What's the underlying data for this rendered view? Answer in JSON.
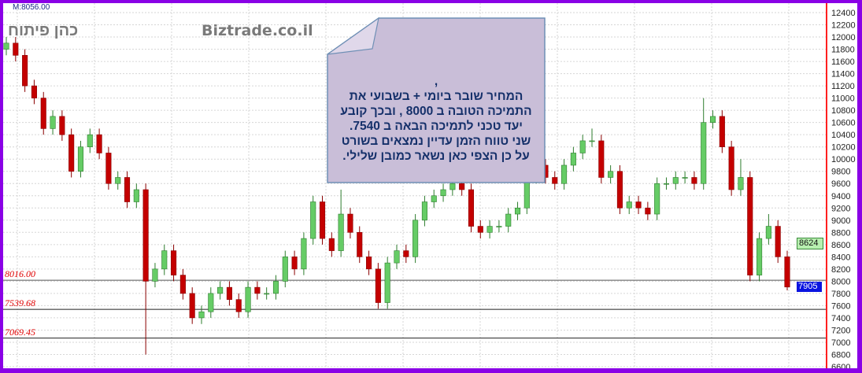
{
  "header": {
    "m_label": "M:8056.00",
    "watermark_left": "כהן פיתוח",
    "watermark_center": "Biztrade.co.il"
  },
  "annotation": {
    "lines": [
      ",",
      "המחיר שובר ביומי + בשבועי את",
      "התמיכה הטובה ב 8000 , ובכך קובע",
      "יעד טכני לתמיכה הבאה ב 7540.",
      "שני טווח הזמן עדיין נמצאים בשורט",
      "על כן הצפי כאן נשאר כמובן שלילי."
    ],
    "background": "#c9bed8",
    "border": "#6f8fb5"
  },
  "chart_data": {
    "type": "candlestick",
    "ylim": [
      6600,
      12400
    ],
    "yticks": [
      6600,
      6800,
      7000,
      7200,
      7400,
      7600,
      7800,
      8000,
      8200,
      8400,
      8600,
      8800,
      9000,
      9200,
      9400,
      9600,
      9800,
      10000,
      10200,
      10400,
      10600,
      10800,
      11000,
      11200,
      11400,
      11600,
      11800,
      12000,
      12200,
      12400
    ],
    "grid": true,
    "up_color": "#66cc66",
    "down_color": "#c40000",
    "open": [
      11800,
      11900,
      11700,
      11200,
      11000,
      10500,
      10700,
      10400,
      9800,
      10200,
      10400,
      10100,
      9600,
      9700,
      9300,
      9500,
      8000,
      8200,
      8500,
      8100,
      7800,
      7400,
      7500,
      7800,
      7900,
      7700,
      7500,
      7900,
      7800,
      7800,
      8000,
      8400,
      8200,
      8700,
      9300,
      8700,
      8500,
      9100,
      8800,
      8400,
      8200,
      7650,
      8300,
      8500,
      8400,
      9000,
      9300,
      9400,
      9500,
      9600,
      9500,
      8900,
      8800,
      8900,
      8900,
      9100,
      9200,
      9700,
      9900,
      9700,
      9600,
      9900,
      10100,
      10300,
      10300,
      9700,
      9800,
      9200,
      9300,
      9200,
      9100,
      9600,
      9600,
      9700,
      9700,
      9600,
      10600,
      10700,
      10200,
      9500,
      9700,
      8100,
      8700,
      8900,
      8400
    ],
    "high": [
      12000,
      12000,
      11800,
      11300,
      11100,
      10800,
      10800,
      10500,
      10300,
      10500,
      10500,
      10200,
      9800,
      9800,
      9600,
      9600,
      8300,
      8600,
      8600,
      8200,
      7900,
      7600,
      7900,
      8000,
      8000,
      7800,
      8000,
      8000,
      7900,
      8100,
      8500,
      8500,
      8800,
      9400,
      9400,
      8800,
      9500,
      9200,
      8900,
      8500,
      8300,
      8400,
      8600,
      8600,
      9100,
      9400,
      9500,
      9600,
      9700,
      9700,
      9600,
      9000,
      9000,
      9000,
      9200,
      9300,
      9800,
      10000,
      10000,
      9800,
      10000,
      10200,
      10400,
      10500,
      10400,
      9900,
      9900,
      9400,
      9400,
      9300,
      9700,
      9700,
      9800,
      9800,
      9800,
      11000,
      10800,
      10800,
      10300,
      10000,
      9800,
      8800,
      9100,
      9000,
      8500
    ],
    "low": [
      11700,
      11600,
      11100,
      10900,
      10400,
      10400,
      10300,
      9700,
      9700,
      10100,
      10000,
      9500,
      9500,
      9200,
      9200,
      6800,
      7900,
      8100,
      8000,
      7700,
      7300,
      7300,
      7400,
      7700,
      7600,
      7400,
      7400,
      7700,
      7700,
      7700,
      7900,
      8100,
      8100,
      8600,
      8600,
      8400,
      8400,
      8700,
      8300,
      8100,
      7550,
      7550,
      8200,
      8300,
      8300,
      8900,
      9200,
      9300,
      9400,
      9400,
      8800,
      8700,
      8700,
      8800,
      8800,
      9000,
      9100,
      9600,
      9600,
      9500,
      9500,
      9800,
      10000,
      10200,
      9600,
      9600,
      9100,
      9100,
      9100,
      9000,
      9000,
      9500,
      9500,
      9600,
      9500,
      9500,
      10500,
      10100,
      9400,
      9400,
      8000,
      8000,
      8600,
      8300,
      7850
    ],
    "close": [
      11900,
      11700,
      11200,
      11000,
      10500,
      10700,
      10400,
      9800,
      10200,
      10400,
      10100,
      9600,
      9700,
      9300,
      9500,
      8000,
      8200,
      8500,
      8100,
      7800,
      7400,
      7500,
      7800,
      7900,
      7700,
      7500,
      7900,
      7800,
      7800,
      8000,
      8400,
      8200,
      8700,
      9300,
      8700,
      8500,
      9100,
      8800,
      8400,
      8200,
      7650,
      8300,
      8500,
      8400,
      9000,
      9300,
      9400,
      9500,
      9600,
      9500,
      8900,
      8800,
      8900,
      8900,
      9100,
      9200,
      9700,
      9900,
      9700,
      9600,
      9900,
      10100,
      10300,
      10300,
      9700,
      9800,
      9200,
      9300,
      9200,
      9100,
      9600,
      9600,
      9700,
      9700,
      9600,
      10600,
      10700,
      10200,
      9500,
      9700,
      8100,
      8700,
      8900,
      8400,
      7905
    ],
    "levels": [
      {
        "value": 8016.0,
        "label": "8016.00"
      },
      {
        "value": 7539.68,
        "label": "7539.68"
      },
      {
        "value": 7069.45,
        "label": "7069.45"
      }
    ],
    "price_badges": [
      {
        "value": 8624,
        "label": "8624",
        "color": "#b8f0b0"
      },
      {
        "value": 7905,
        "label": "7905",
        "color": "#0a14e0"
      }
    ]
  }
}
